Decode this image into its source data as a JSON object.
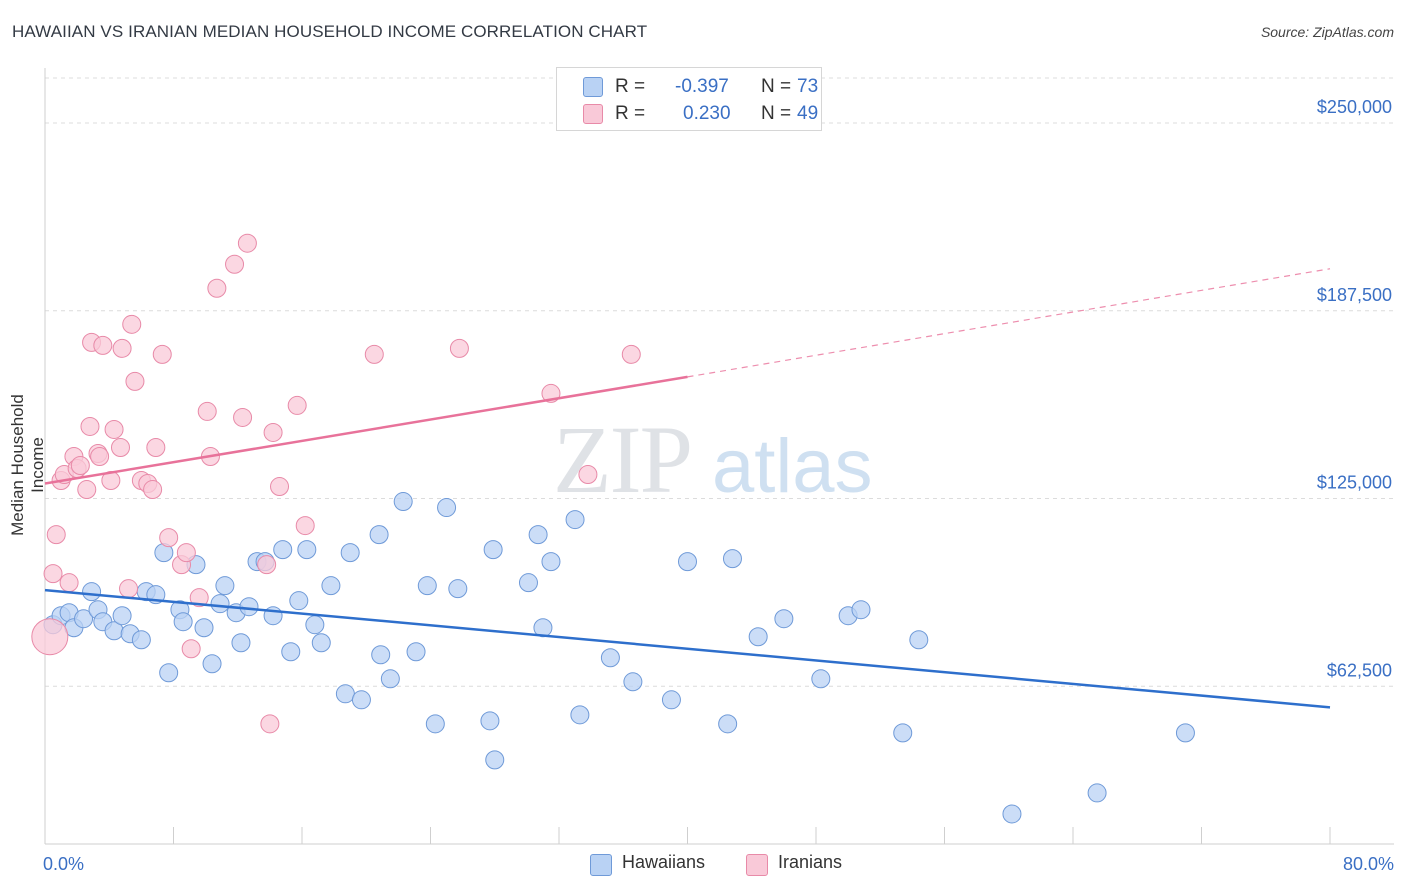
{
  "title": "HAWAIIAN VS IRANIAN MEDIAN HOUSEHOLD INCOME CORRELATION CHART",
  "source": "Source: ZipAtlas.com",
  "watermark": {
    "zip": "ZIP",
    "atlas": "atlas"
  },
  "legend": {
    "r_label": "R =",
    "n_label": "N =",
    "rows": [
      {
        "r": "-0.397",
        "n": "73",
        "fill": "#b9d2f4",
        "stroke": "#6f9ad8"
      },
      {
        "r": "0.230",
        "n": "49",
        "fill": "#f9c9d8",
        "stroke": "#e88aa8"
      }
    ]
  },
  "chart_data": {
    "type": "scatter",
    "title": "HAWAIIAN VS IRANIAN MEDIAN HOUSEHOLD INCOME CORRELATION CHART",
    "xlabel": "",
    "ylabel": "Median Household Income",
    "xlim": [
      0,
      80
    ],
    "ylim": [
      10000,
      265000
    ],
    "x_tick_labels": [
      "0.0%",
      "80.0%"
    ],
    "y_ticks": [
      62500,
      125000,
      187500,
      250000
    ],
    "y_tick_labels": [
      "$62,500",
      "$125,000",
      "$187,500",
      "$250,000"
    ],
    "grid": "horizontal dashed",
    "legend_position": "top-center",
    "series": [
      {
        "name": "Hawaiians",
        "color": "#6f9ad8",
        "fill": "#b9d2f4",
        "line_color": "#2e6fcc",
        "trend": {
          "x": [
            0,
            80
          ],
          "y": [
            94500,
            55500
          ]
        },
        "points": [
          [
            0.5,
            83000
          ],
          [
            1.0,
            86000
          ],
          [
            1.5,
            87000
          ],
          [
            1.8,
            82000
          ],
          [
            2.4,
            85000
          ],
          [
            2.9,
            94000
          ],
          [
            3.3,
            88000
          ],
          [
            3.6,
            84000
          ],
          [
            4.3,
            81000
          ],
          [
            4.8,
            86000
          ],
          [
            5.3,
            80000
          ],
          [
            6.0,
            78000
          ],
          [
            6.3,
            94000
          ],
          [
            6.9,
            93000
          ],
          [
            7.4,
            107000
          ],
          [
            7.7,
            67000
          ],
          [
            8.4,
            88000
          ],
          [
            8.6,
            84000
          ],
          [
            9.4,
            103000
          ],
          [
            9.9,
            82000
          ],
          [
            10.4,
            70000
          ],
          [
            10.9,
            90000
          ],
          [
            11.2,
            96000
          ],
          [
            11.9,
            87000
          ],
          [
            12.2,
            77000
          ],
          [
            12.7,
            89000
          ],
          [
            13.2,
            104000
          ],
          [
            13.7,
            104000
          ],
          [
            14.2,
            86000
          ],
          [
            14.8,
            108000
          ],
          [
            15.3,
            74000
          ],
          [
            15.8,
            91000
          ],
          [
            16.3,
            108000
          ],
          [
            16.8,
            83000
          ],
          [
            17.2,
            77000
          ],
          [
            17.8,
            96000
          ],
          [
            18.7,
            60000
          ],
          [
            19.0,
            107000
          ],
          [
            19.7,
            58000
          ],
          [
            20.8,
            113000
          ],
          [
            20.9,
            73000
          ],
          [
            21.5,
            65000
          ],
          [
            22.3,
            124000
          ],
          [
            23.1,
            74000
          ],
          [
            23.8,
            96000
          ],
          [
            24.3,
            50000
          ],
          [
            25.0,
            122000
          ],
          [
            25.7,
            95000
          ],
          [
            28.0,
            38000
          ],
          [
            27.7,
            51000
          ],
          [
            27.9,
            108000
          ],
          [
            30.1,
            97000
          ],
          [
            30.7,
            113000
          ],
          [
            31.0,
            82000
          ],
          [
            31.5,
            104000
          ],
          [
            33.0,
            118000
          ],
          [
            33.3,
            53000
          ],
          [
            35.2,
            72000
          ],
          [
            36.6,
            64000
          ],
          [
            39.0,
            58000
          ],
          [
            40.0,
            104000
          ],
          [
            42.5,
            50000
          ],
          [
            42.8,
            105000
          ],
          [
            44.4,
            79000
          ],
          [
            46.0,
            85000
          ],
          [
            48.3,
            65000
          ],
          [
            50.0,
            86000
          ],
          [
            50.8,
            88000
          ],
          [
            53.4,
            47000
          ],
          [
            54.4,
            78000
          ],
          [
            60.2,
            20000
          ],
          [
            65.5,
            27000
          ],
          [
            71.0,
            47000
          ]
        ]
      },
      {
        "name": "Iranians",
        "color": "#e88aa8",
        "fill": "#f9c9d8",
        "line_color": "#e8729a",
        "trend": {
          "x": [
            0,
            40
          ],
          "y": [
            130000,
            165500
          ]
        },
        "trend_dashed": {
          "x": [
            40,
            80
          ],
          "y": [
            165500,
            201500
          ]
        },
        "points": [
          [
            0.5,
            100000
          ],
          [
            0.7,
            113000
          ],
          [
            1.0,
            131000
          ],
          [
            1.2,
            133000
          ],
          [
            1.5,
            97000
          ],
          [
            1.8,
            139000
          ],
          [
            2.0,
            135000
          ],
          [
            2.2,
            136000
          ],
          [
            2.6,
            128000
          ],
          [
            2.8,
            149000
          ],
          [
            2.9,
            177000
          ],
          [
            3.3,
            140000
          ],
          [
            3.4,
            139000
          ],
          [
            3.6,
            176000
          ],
          [
            4.1,
            131000
          ],
          [
            4.3,
            148000
          ],
          [
            4.7,
            142000
          ],
          [
            4.8,
            175000
          ],
          [
            5.2,
            95000
          ],
          [
            5.4,
            183000
          ],
          [
            5.6,
            164000
          ],
          [
            6.0,
            131000
          ],
          [
            6.4,
            130000
          ],
          [
            6.7,
            128000
          ],
          [
            6.9,
            142000
          ],
          [
            7.3,
            173000
          ],
          [
            7.7,
            112000
          ],
          [
            8.5,
            103000
          ],
          [
            8.8,
            107000
          ],
          [
            9.1,
            75000
          ],
          [
            9.6,
            92000
          ],
          [
            10.1,
            154000
          ],
          [
            10.3,
            139000
          ],
          [
            10.7,
            195000
          ],
          [
            11.8,
            203000
          ],
          [
            12.3,
            152000
          ],
          [
            12.6,
            210000
          ],
          [
            14.0,
            50000
          ],
          [
            13.8,
            103000
          ],
          [
            14.2,
            147000
          ],
          [
            14.6,
            129000
          ],
          [
            15.7,
            156000
          ],
          [
            16.2,
            116000
          ],
          [
            20.5,
            173000
          ],
          [
            25.8,
            175000
          ],
          [
            31.5,
            160000
          ],
          [
            33.8,
            133000
          ],
          [
            36.5,
            173000
          ],
          [
            0.3,
            79000
          ]
        ]
      }
    ]
  }
}
